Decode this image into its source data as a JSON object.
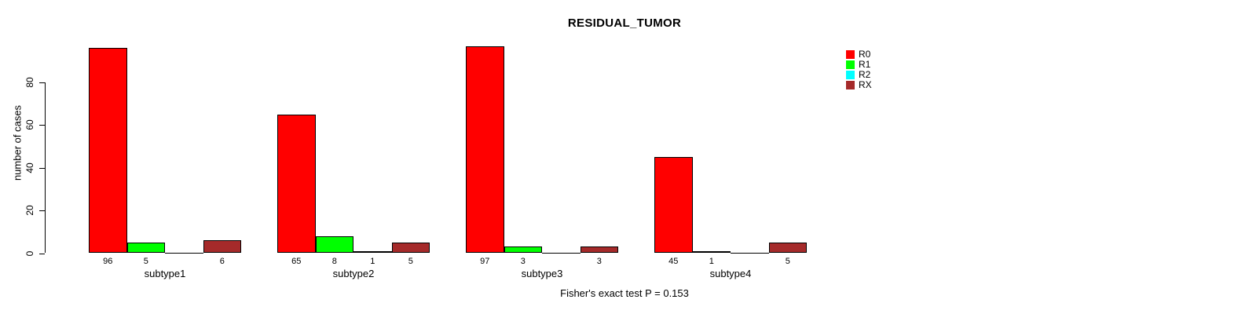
{
  "title": "RESIDUAL_TUMOR",
  "chart_data": {
    "type": "bar",
    "title": "RESIDUAL_TUMOR",
    "ylabel": "number of cases",
    "xlabel": "",
    "ylim": [
      0,
      100
    ],
    "yticks": [
      0,
      20,
      40,
      60,
      80
    ],
    "grid": false,
    "categories": [
      "subtype1",
      "subtype2",
      "subtype3",
      "subtype4"
    ],
    "series": [
      {
        "name": "R0",
        "color": "#FF0000",
        "values": [
          96,
          65,
          97,
          45
        ]
      },
      {
        "name": "R1",
        "color": "#00FF00",
        "values": [
          5,
          8,
          3,
          1
        ]
      },
      {
        "name": "R2",
        "color": "#00FFFF",
        "values": [
          0,
          1,
          0,
          0
        ]
      },
      {
        "name": "RX",
        "color": "#A52A2A",
        "values": [
          6,
          5,
          3,
          5
        ]
      }
    ],
    "bar_value_labels": [
      [
        "96",
        "5",
        "",
        "6"
      ],
      [
        "65",
        "8",
        "1",
        "5"
      ],
      [
        "97",
        "3",
        "",
        "3"
      ],
      [
        "45",
        "1",
        "",
        "5"
      ]
    ],
    "legend": {
      "position": "right",
      "entries": [
        "R0",
        "R1",
        "R2",
        "RX"
      ]
    },
    "footnote": "Fisher's exact test P = 0.153"
  }
}
